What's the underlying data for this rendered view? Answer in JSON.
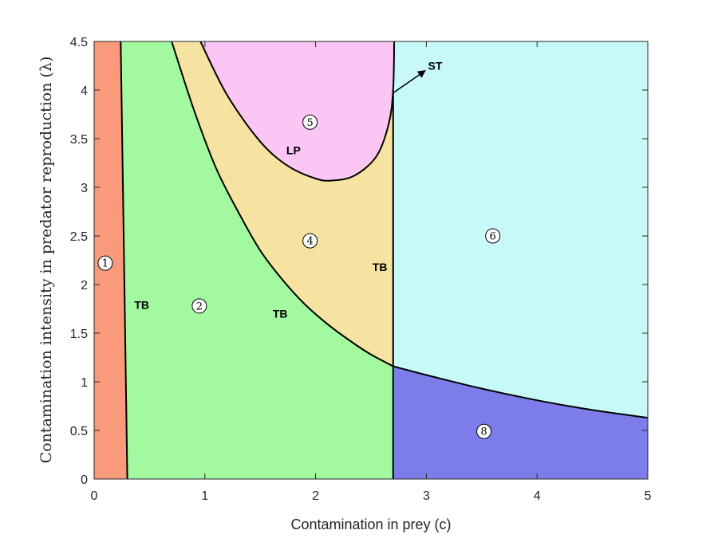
{
  "chart_data": {
    "type": "region",
    "xlabel": "Contamination in prey (c)",
    "ylabel": "Contamination intensity in predator reproduction (λ)",
    "xlim": [
      0,
      5
    ],
    "ylim": [
      0,
      4.5
    ],
    "xticks": [
      "0",
      "1",
      "2",
      "3",
      "4",
      "5"
    ],
    "yticks": [
      "0",
      "0.5",
      "1",
      "1.5",
      "2",
      "2.5",
      "3",
      "3.5",
      "4",
      "4.5"
    ],
    "grid": false,
    "colors": {
      "region_1": "#f99a7b",
      "region_2": "#a3f99f",
      "region_4": "#f6e3a2",
      "region_5": "#fbc5f4",
      "region_6": "#c7f9f9",
      "region_8": "#7c7de9"
    },
    "regions": [
      {
        "label": "1",
        "x": 0.1,
        "y": 2.22
      },
      {
        "label": "2",
        "x": 0.95,
        "y": 1.78
      },
      {
        "label": "4",
        "x": 1.95,
        "y": 2.45
      },
      {
        "label": "5",
        "x": 1.95,
        "y": 3.67
      },
      {
        "label": "6",
        "x": 3.6,
        "y": 2.5
      },
      {
        "label": "8",
        "x": 3.52,
        "y": 0.49
      }
    ],
    "curve_labels": [
      {
        "text": "TB",
        "x": 0.43,
        "y": 1.79
      },
      {
        "text": "TB",
        "x": 1.68,
        "y": 1.7
      },
      {
        "text": "TB",
        "x": 2.58,
        "y": 2.18
      },
      {
        "text": "LP",
        "x": 1.8,
        "y": 3.38
      },
      {
        "text": "ST",
        "x": 3.08,
        "y": 4.25
      }
    ],
    "curves": {
      "tb_left": [
        [
          0.24,
          4.5
        ],
        [
          0.3,
          0
        ]
      ],
      "tb_middle": [
        [
          0.7,
          4.5
        ],
        [
          0.9,
          3.8
        ],
        [
          1.1,
          3.2
        ],
        [
          1.3,
          2.75
        ],
        [
          1.5,
          2.35
        ],
        [
          1.7,
          2.05
        ],
        [
          1.9,
          1.8
        ],
        [
          2.1,
          1.6
        ],
        [
          2.3,
          1.43
        ],
        [
          2.5,
          1.28
        ],
        [
          2.7,
          1.16
        ]
      ],
      "tb_right": [
        [
          2.7,
          0
        ],
        [
          2.7,
          4.0
        ]
      ],
      "tb_lower_right": [
        [
          2.7,
          1.16
        ],
        [
          3.0,
          1.07
        ],
        [
          3.5,
          0.93
        ],
        [
          4.0,
          0.81
        ],
        [
          4.5,
          0.71
        ],
        [
          5.0,
          0.63
        ]
      ],
      "lp": [
        [
          0.96,
          4.5
        ],
        [
          1.2,
          3.95
        ],
        [
          1.5,
          3.47
        ],
        [
          1.75,
          3.22
        ],
        [
          2.0,
          3.09
        ],
        [
          2.15,
          3.07
        ],
        [
          2.35,
          3.12
        ],
        [
          2.55,
          3.32
        ],
        [
          2.66,
          3.65
        ],
        [
          2.7,
          4.0
        ],
        [
          2.71,
          4.5
        ]
      ],
      "st_arrow": [
        [
          2.7,
          3.97
        ],
        [
          2.99,
          4.2
        ]
      ]
    }
  }
}
